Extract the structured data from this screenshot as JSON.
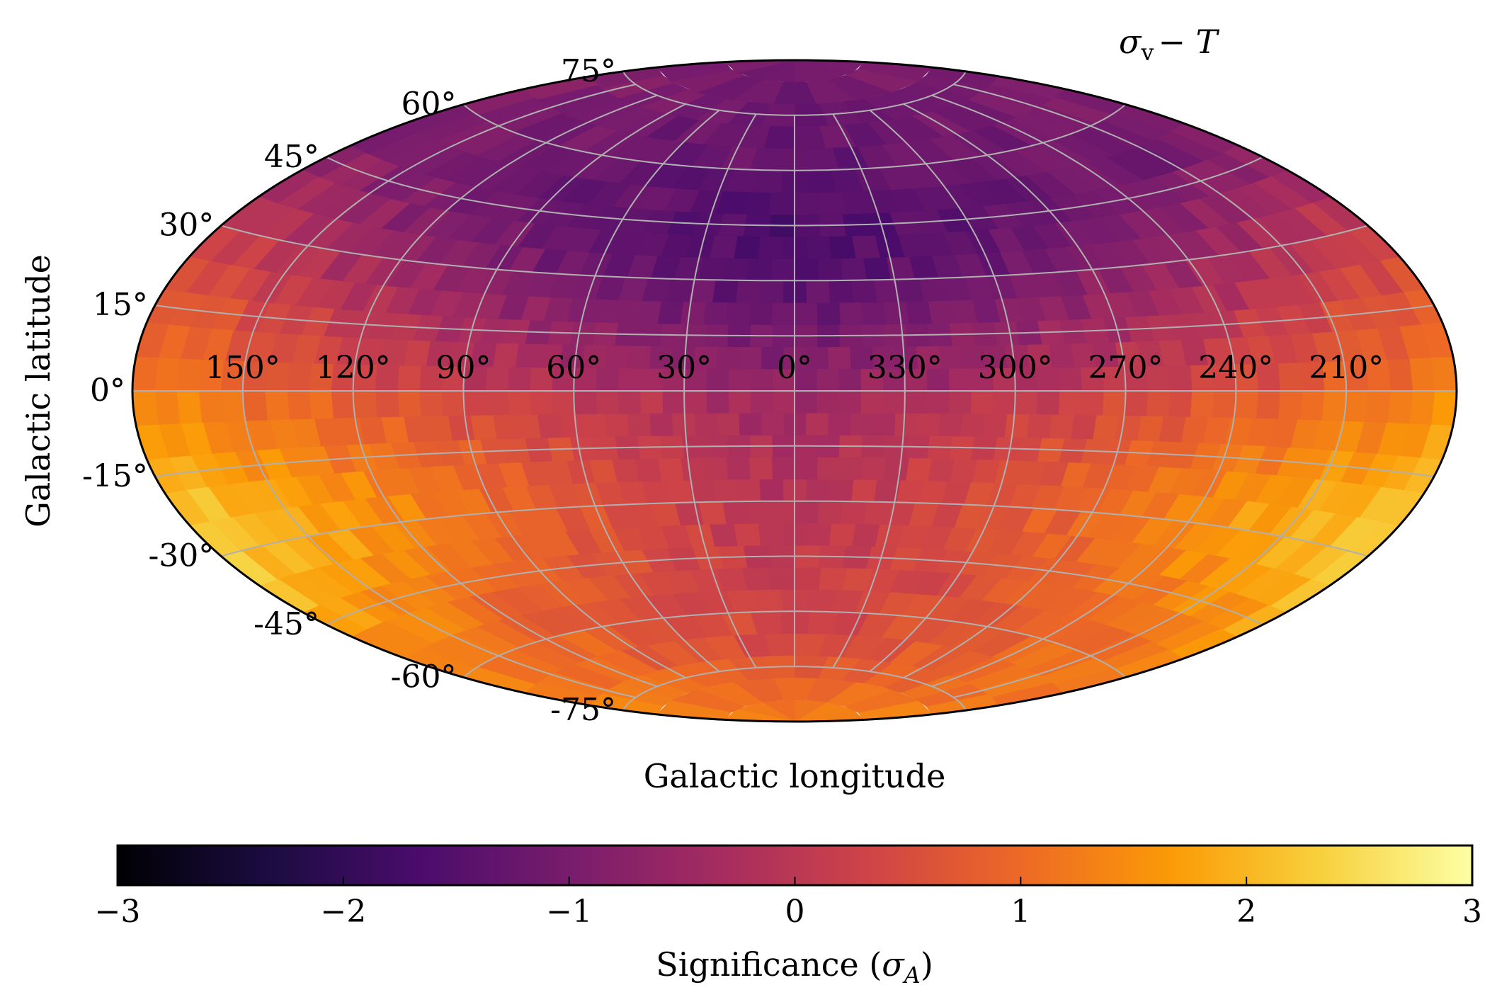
{
  "chart_data": {
    "type": "heatmap",
    "projection": "aitoff",
    "title": "σv − T",
    "title_parts": {
      "main": "σ",
      "sub": "v",
      "rest": "− T"
    },
    "xlabel": "Galactic longitude",
    "ylabel": "Galactic latitude",
    "grid": true,
    "colormap": "inferno",
    "longitude_tick_labels": [
      "150°",
      "120°",
      "90°",
      "60°",
      "30°",
      "0°",
      "330°",
      "300°",
      "270°",
      "240°",
      "210°"
    ],
    "latitude_tick_labels": [
      "75°",
      "60°",
      "45°",
      "30°",
      "15°",
      "0°",
      "-15°",
      "-30°",
      "-45°",
      "-60°",
      "-75°"
    ],
    "colorbar": {
      "label": "Significance (σA)",
      "label_parts": {
        "pre": "Significance (",
        "sym": "σ",
        "sub": "A",
        "post": ")"
      },
      "range": [
        -3,
        3
      ],
      "tick_values": [
        -3,
        -2,
        -1,
        0,
        1,
        2,
        3
      ],
      "tick_labels": [
        "−3",
        "−2",
        "−1",
        "0",
        "1",
        "2",
        "3"
      ]
    },
    "value_field_summary": [
      {
        "region": "north polar cap (b > 60°)",
        "approx_sigma": -1.3
      },
      {
        "region": "northern mid latitudes",
        "approx_sigma": -1.6
      },
      {
        "region": "galactic center near equator",
        "approx_sigma": -0.6
      },
      {
        "region": "outer longitudes near equator",
        "approx_sigma": 1.4
      },
      {
        "region": "southern center (l≈0°, b≈-45°)",
        "approx_sigma": 0.1
      },
      {
        "region": "southern outer edges (l≈150°/210°, b≈-30°)",
        "approx_sigma": 2.2
      },
      {
        "region": "south polar cap",
        "approx_sigma": 1.3
      }
    ]
  },
  "colors": {
    "grid": "#b0b0b0",
    "frame": "#000000",
    "inferno_stops": [
      "#000004",
      "#1b0c41",
      "#4a0c6b",
      "#781c6d",
      "#a52c60",
      "#cf4446",
      "#ed6925",
      "#fb9b06",
      "#f7d13d",
      "#fcffa4"
    ]
  }
}
